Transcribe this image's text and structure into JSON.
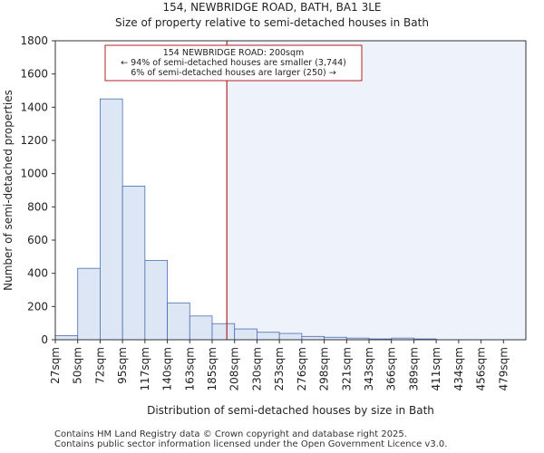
{
  "header": {
    "title_line1": "154, NEWBRIDGE ROAD, BATH, BA1 3LE",
    "title_line2": "Size of property relative to semi-detached houses in Bath"
  },
  "footer": {
    "line1": "Contains HM Land Registry data © Crown copyright and database right 2025.",
    "line2": "Contains public sector information licensed under the Open Government Licence v3.0."
  },
  "colors": {
    "bar_fill": "#dce6f5",
    "bar_stroke": "#4a6fb0",
    "marker": "#b22222",
    "highlight_region": "#eef2fb",
    "axis": "#333333"
  },
  "chart_data": {
    "type": "bar",
    "title": "Size of property relative to semi-detached houses in Bath",
    "xlabel": "Distribution of semi-detached houses by size in Bath",
    "ylabel": "Number of semi-detached properties",
    "ylim": [
      0,
      1800
    ],
    "yticks": [
      0,
      200,
      400,
      600,
      800,
      1000,
      1200,
      1400,
      1600,
      1800
    ],
    "categories": [
      "27sqm",
      "50sqm",
      "72sqm",
      "95sqm",
      "117sqm",
      "140sqm",
      "163sqm",
      "185sqm",
      "208sqm",
      "230sqm",
      "253sqm",
      "276sqm",
      "298sqm",
      "321sqm",
      "343sqm",
      "366sqm",
      "389sqm",
      "411sqm",
      "434sqm",
      "456sqm",
      "479sqm"
    ],
    "values": [
      25,
      430,
      1450,
      925,
      478,
      222,
      143,
      97,
      65,
      45,
      38,
      20,
      15,
      10,
      5,
      10,
      5,
      0,
      0,
      0,
      0
    ],
    "marker_value": 200,
    "marker_label": "154 NEWBRIDGE ROAD: 200sqm",
    "annotation_lines": [
      "154 NEWBRIDGE ROAD: 200sqm",
      "← 94% of semi-detached houses are smaller (3,744)",
      "6% of semi-detached houses are larger (250) →"
    ]
  }
}
